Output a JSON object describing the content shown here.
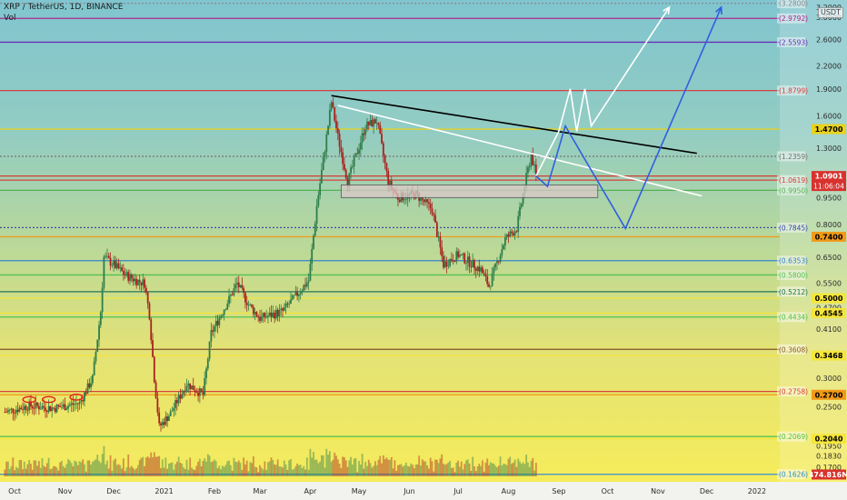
{
  "header": {
    "title": "XRP / TetherUS, 1D, BINANCE",
    "volume_label": "Vol"
  },
  "axis": {
    "unit": "USDT",
    "ticks": [
      "3.2000",
      "3.0000",
      "2.6000",
      "2.2000",
      "1.9000",
      "1.6000",
      "1.3000",
      "0.9500",
      "0.8000",
      "0.6500",
      "0.5500",
      "0.4700",
      "0.4100",
      "0.3500",
      "0.3000",
      "0.2500",
      "0.1950",
      "0.1830",
      "0.1700"
    ]
  },
  "x_axis": [
    "Oct",
    "Nov",
    "Dec",
    "2021",
    "Feb",
    "Mar",
    "Apr",
    "May",
    "Jun",
    "Jul",
    "Aug",
    "Sep",
    "Oct",
    "Nov",
    "Dec",
    "2022"
  ],
  "price_badges": [
    {
      "label": "1.4700",
      "price": 1.47,
      "color": "#e8d21c",
      "text": "#000000"
    },
    {
      "label": "1.0901",
      "price": 1.0901,
      "color": "#d8322e",
      "text": "#ffffff",
      "sub": "11:06:04"
    },
    {
      "label": "0.7400",
      "price": 0.74,
      "color": "#f19a18",
      "text": "#000000"
    },
    {
      "label": "0.5000",
      "price": 0.5,
      "color": "#f5e63a",
      "text": "#000000"
    },
    {
      "label": "0.4545",
      "price": 0.4545,
      "color": "#f5e63a",
      "text": "#000000"
    },
    {
      "label": "0.3468",
      "price": 0.3468,
      "color": "#f5e63a",
      "text": "#000000"
    },
    {
      "label": "0.2700",
      "price": 0.27,
      "color": "#f19a18",
      "text": "#000000"
    },
    {
      "label": "0.2040",
      "price": 0.204,
      "color": "#f5e63a",
      "text": "#000000"
    },
    {
      "label": "474.816M",
      "color": "#d8322e",
      "text": "#ffffff"
    }
  ],
  "level_labels": [
    {
      "label": "(3.2800)",
      "price": 3.28,
      "color": "#8a8a8a"
    },
    {
      "label": "(2.9792)",
      "price": 2.9792,
      "color": "#b0208a"
    },
    {
      "label": "(2.5593)",
      "price": 2.5593,
      "color": "#6a2ab8"
    },
    {
      "label": "(1.8799)",
      "price": 1.8799,
      "color": "#d83a3a"
    },
    {
      "label": "(1.2359)",
      "price": 1.2359,
      "color": "#707070"
    },
    {
      "label": "(1.0619)",
      "price": 1.0619,
      "color": "#d83a3a"
    },
    {
      "label": "(0.9950)",
      "price": 0.995,
      "color": "#50b050"
    },
    {
      "label": "(0.7845)",
      "price": 0.7845,
      "color": "#3344aa"
    },
    {
      "label": "(0.6353)",
      "price": 0.6353,
      "color": "#2f7fd0"
    },
    {
      "label": "(0.5800)",
      "price": 0.58,
      "color": "#50c050"
    },
    {
      "label": "(0.5212)",
      "price": 0.5212,
      "color": "#1c6e5a"
    },
    {
      "label": "(0.4434)",
      "price": 0.4434,
      "color": "#50c050"
    },
    {
      "label": "(0.3608)",
      "price": 0.3608,
      "color": "#8a5a2a"
    },
    {
      "label": "(0.2758)",
      "price": 0.2758,
      "color": "#d83a3a"
    },
    {
      "label": "(0.2069)",
      "price": 0.2069,
      "color": "#50c050"
    },
    {
      "label": "(0.1626)",
      "price": 0.1626,
      "color": "#2a8ad0"
    }
  ],
  "chart_data": {
    "type": "candlestick",
    "symbol": "XRP / TetherUS",
    "interval": "1D",
    "exchange": "BINANCE",
    "y_scale": "log",
    "y_range": [
      0.155,
      3.35
    ],
    "x_range": [
      "2020-09-22",
      "2022-01-15"
    ],
    "last_price": 1.0901,
    "last_volume": "474.816M",
    "close_path": [
      [
        "2020-09-25",
        0.242
      ],
      [
        "2020-10-10",
        0.252
      ],
      [
        "2020-10-25",
        0.248
      ],
      [
        "2020-11-10",
        0.256
      ],
      [
        "2020-11-18",
        0.3
      ],
      [
        "2020-11-23",
        0.46
      ],
      [
        "2020-11-25",
        0.65
      ],
      [
        "2020-12-01",
        0.62
      ],
      [
        "2020-12-08",
        0.58
      ],
      [
        "2020-12-15",
        0.56
      ],
      [
        "2020-12-20",
        0.55
      ],
      [
        "2020-12-23",
        0.45
      ],
      [
        "2020-12-26",
        0.3
      ],
      [
        "2020-12-29",
        0.22
      ],
      [
        "2021-01-05",
        0.24
      ],
      [
        "2021-01-15",
        0.29
      ],
      [
        "2021-01-25",
        0.27
      ],
      [
        "2021-01-30",
        0.4
      ],
      [
        "2021-02-05",
        0.45
      ],
      [
        "2021-02-15",
        0.55
      ],
      [
        "2021-02-22",
        0.48
      ],
      [
        "2021-03-01",
        0.44
      ],
      [
        "2021-03-15",
        0.46
      ],
      [
        "2021-03-31",
        0.56
      ],
      [
        "2021-04-05",
        0.9
      ],
      [
        "2021-04-10",
        1.3
      ],
      [
        "2021-04-14",
        1.75
      ],
      [
        "2021-04-18",
        1.4
      ],
      [
        "2021-04-24",
        1.05
      ],
      [
        "2021-05-05",
        1.5
      ],
      [
        "2021-05-12",
        1.55
      ],
      [
        "2021-05-19",
        1.05
      ],
      [
        "2021-05-25",
        0.95
      ],
      [
        "2021-06-05",
        0.97
      ],
      [
        "2021-06-15",
        0.88
      ],
      [
        "2021-06-22",
        0.62
      ],
      [
        "2021-07-01",
        0.66
      ],
      [
        "2021-07-15",
        0.6
      ],
      [
        "2021-07-20",
        0.54
      ],
      [
        "2021-07-30",
        0.73
      ],
      [
        "2021-08-06",
        0.78
      ],
      [
        "2021-08-12",
        1.08
      ],
      [
        "2021-08-15",
        1.25
      ],
      [
        "2021-08-18",
        1.0901
      ]
    ],
    "resistance_levels": [
      3.28,
      2.9792,
      2.5593,
      1.8799,
      1.47,
      1.2359,
      1.0901,
      1.0619,
      0.995,
      0.7845,
      0.74,
      0.6353,
      0.58,
      0.5212,
      0.5,
      0.4545,
      0.4434,
      0.3608,
      0.3468,
      0.2758,
      0.27,
      0.2069,
      0.204,
      0.1626
    ],
    "trendlines": [
      {
        "name": "descending-resistance",
        "color": "#000000",
        "from": [
          "2021-04-14",
          1.82
        ],
        "to": [
          "2021-11-25",
          1.26
        ]
      },
      {
        "name": "descending-white",
        "color": "#ffffff",
        "from": [
          "2021-04-18",
          1.71
        ],
        "to": [
          "2021-11-28",
          0.96
        ]
      }
    ],
    "support_zone": {
      "from": "2021-04-20",
      "to": "2021-09-25",
      "low": 0.95,
      "high": 1.03
    },
    "projections": [
      {
        "name": "bullish-white",
        "color": "#ffffff",
        "points": [
          [
            "2021-08-18",
            1.0901
          ],
          [
            "2021-09-01",
            1.45
          ],
          [
            "2021-09-08",
            1.9
          ],
          [
            "2021-09-12",
            1.45
          ],
          [
            "2021-09-17",
            1.9
          ],
          [
            "2021-09-21",
            1.5
          ],
          [
            "2021-11-08",
            3.2
          ]
        ]
      },
      {
        "name": "bullish-blue",
        "color": "#2f5fe0",
        "points": [
          [
            "2021-08-18",
            1.0901
          ],
          [
            "2021-08-25",
            1.02
          ],
          [
            "2021-09-05",
            1.5
          ],
          [
            "2021-10-12",
            0.78
          ],
          [
            "2021-12-10",
            3.2
          ]
        ]
      }
    ],
    "annotations": [
      "red circles marking tops in Oct–Nov 2020 range"
    ]
  }
}
